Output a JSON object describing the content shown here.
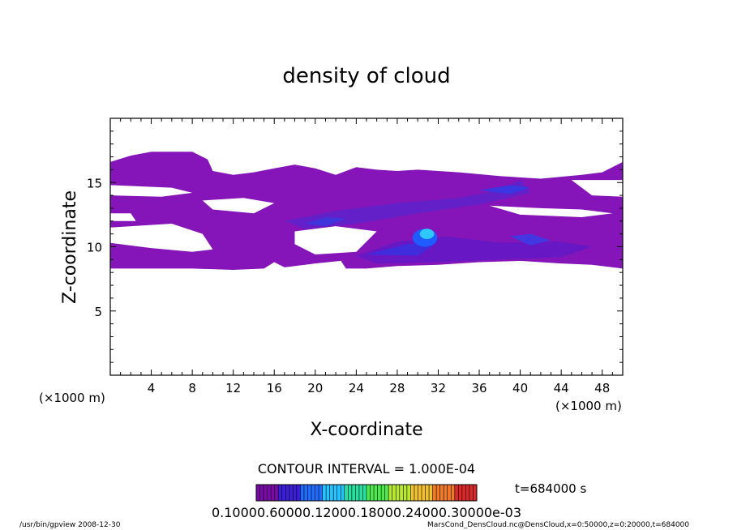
{
  "chart_data": {
    "type": "heatmap",
    "title": "density of cloud",
    "xlabel": "X-coordinate",
    "ylabel": "Z-coordinate",
    "x_unit": "(×1000 m)",
    "y_unit": "(×1000 m)",
    "xlim": [
      0,
      50
    ],
    "ylim": [
      0,
      20
    ],
    "x_ticks": [
      "4",
      "8",
      "12",
      "16",
      "20",
      "24",
      "28",
      "32",
      "36",
      "40",
      "44",
      "48"
    ],
    "y_ticks": [
      "5",
      "10",
      "15"
    ],
    "contour_interval": "CONTOUR INTERVAL = 1.000E-04",
    "time_label": "t=684000 s",
    "colorbar_labels": "0.10000.60000.12000.18000.24000.30000e-03",
    "colorbar_colors": [
      "#7a0aa8",
      "#3b1fd8",
      "#1f6cff",
      "#26c4ff",
      "#28e0a0",
      "#4fe84f",
      "#b8e834",
      "#f0c030",
      "#f07a28",
      "#d82a2a"
    ],
    "regions": [
      {
        "name": "cloud layer (faint)",
        "color": "#8515b8",
        "x": [
          0,
          50
        ],
        "z": [
          8.3,
          17.3
        ]
      },
      {
        "name": "band z≈9-10.5",
        "color": "#6a20d0",
        "x": [
          25,
          48
        ],
        "z": [
          8.7,
          10.8
        ]
      },
      {
        "name": "band z≈11-13",
        "color": "#5a2bd8",
        "x": [
          18,
          35
        ],
        "z": [
          10.8,
          13.5
        ]
      },
      {
        "name": "core",
        "color": "#2e8cff",
        "x": [
          29.5,
          32
        ],
        "z": [
          9.8,
          11.3
        ]
      }
    ],
    "grid": false
  },
  "footer": {
    "left": "/usr/bin/gpview   2008-12-30",
    "right": "MarsCond_DensCloud.nc@DensCloud,x=0:50000,z=0:20000,t=684000"
  }
}
